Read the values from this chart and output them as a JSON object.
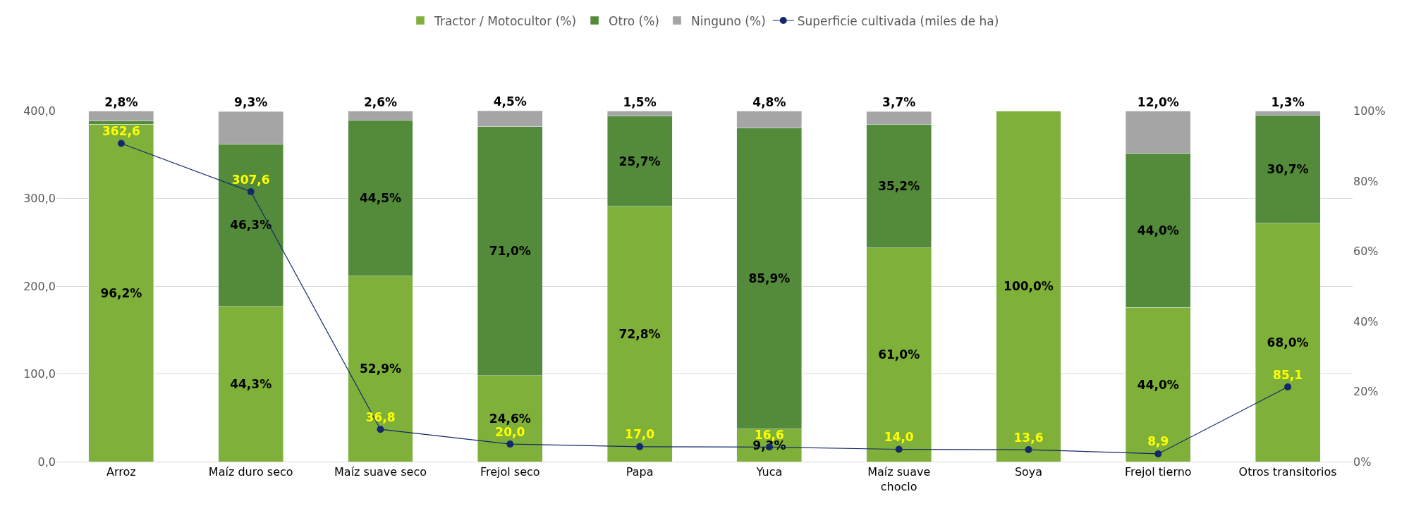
{
  "chart_data": {
    "type": "bar",
    "stacked": true,
    "categories": [
      "Arroz",
      "Maíz duro seco",
      "Maíz suave seco",
      "Frejol seco",
      "Papa",
      "Yuca",
      "Maíz suave\nchoclo",
      "Soya",
      "Frejol tierno",
      "Otros transitorios"
    ],
    "series": [
      {
        "name": "Tractor / Motocultor (%)",
        "color": "#7fb13a",
        "axis": "y2",
        "values": [
          96.2,
          44.3,
          52.9,
          24.6,
          72.8,
          9.3,
          61.0,
          100.0,
          44.0,
          68.0
        ],
        "value_labels": [
          "96,2%",
          "44,3%",
          "52,9%",
          "24,6%",
          "72,8%",
          "9,3%",
          "61,0%",
          "100,0%",
          "44,0%",
          "68,0%"
        ]
      },
      {
        "name": "Otro (%)",
        "color": "#548b3a",
        "axis": "y2",
        "values": [
          1.0,
          46.3,
          44.5,
          71.0,
          25.7,
          85.9,
          35.2,
          null,
          44.0,
          30.7
        ],
        "value_labels": [
          null,
          "46,3%",
          "44,5%",
          "71,0%",
          "25,7%",
          "85,9%",
          "35,2%",
          null,
          "44,0%",
          "30,7%"
        ]
      },
      {
        "name": "Ninguno (%)",
        "color": "#a5a5a5",
        "axis": "y2",
        "values": [
          2.8,
          9.3,
          2.6,
          4.5,
          1.5,
          4.8,
          3.7,
          null,
          12.0,
          1.3
        ],
        "value_labels": [
          "2,8%",
          "9,3%",
          "2,6%",
          "4,5%",
          "1,5%",
          "4,8%",
          "3,7%",
          null,
          "12,0%",
          "1,3%"
        ]
      },
      {
        "name": "Superficie cultivada (miles de ha)",
        "color": "#13296b",
        "type": "line",
        "axis": "y",
        "marker": "circle",
        "values": [
          362.6,
          307.6,
          36.8,
          20.0,
          17.0,
          16.6,
          14.0,
          13.6,
          8.9,
          85.1
        ],
        "value_labels": [
          "362,6",
          "307,6",
          "36,8",
          "20,0",
          "17,0",
          "16,6",
          "14,0",
          "13,6",
          "8,9",
          "85,1"
        ]
      }
    ],
    "ylim": [
      0,
      400
    ],
    "yticks": [
      {
        "value": 0,
        "label": "0,0"
      },
      {
        "value": 100,
        "label": "100,0"
      },
      {
        "value": 200,
        "label": "200,0"
      },
      {
        "value": 300,
        "label": "300,0"
      },
      {
        "value": 400,
        "label": "400,0"
      }
    ],
    "y2lim": [
      0,
      100.1
    ],
    "y2ticks": [
      {
        "value": 0,
        "label": "0%"
      },
      {
        "value": 20,
        "label": "20%"
      },
      {
        "value": 40,
        "label": "40%"
      },
      {
        "value": 60,
        "label": "60%"
      },
      {
        "value": 80,
        "label": "80%"
      },
      {
        "value": 100,
        "label": "100%"
      }
    ],
    "grid": "y",
    "legend": "top"
  }
}
